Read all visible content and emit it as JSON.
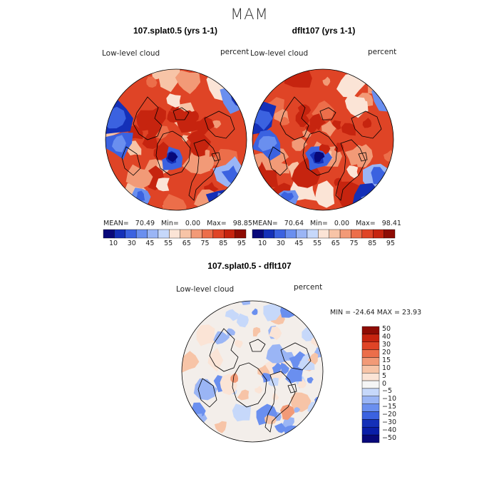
{
  "season": "MAM",
  "panels": [
    {
      "title": "107.splat0.5 (yrs 1-1)",
      "variable": "Low-level cloud",
      "units": "percent",
      "stats": {
        "mean_label": "MEAN=",
        "mean": "70.49",
        "min_label": "Min=",
        "min": "0.00",
        "max_label": "Max=",
        "max": "98.85"
      }
    },
    {
      "title": "dflt107 (yrs 1-1)",
      "variable": "Low-level cloud",
      "units": "percent",
      "stats": {
        "mean_label": "MEAN=",
        "mean": "70.64",
        "min_label": "Min=",
        "min": "0.00",
        "max_label": "Max=",
        "max": "98.41"
      }
    },
    {
      "title": "107.splat0.5 - dflt107",
      "variable": "Low-level cloud",
      "units": "percent",
      "range_text": "MIN = -24.64 MAX =  23.93"
    }
  ],
  "colorbar_abs": {
    "colors": [
      "#08087a",
      "#1430b8",
      "#3b62e0",
      "#6a8fef",
      "#9ab5f5",
      "#c6d8fa",
      "#fbe4d6",
      "#f7c4a7",
      "#f29a77",
      "#ec6e4a",
      "#df4426",
      "#c6240f",
      "#8e0c04"
    ],
    "ticks": [
      "10",
      "30",
      "45",
      "55",
      "65",
      "75",
      "85",
      "95"
    ]
  },
  "colorbar_diff": {
    "colors": [
      "#8e0c04",
      "#c6240f",
      "#df4426",
      "#ec6e4a",
      "#f29a77",
      "#f7c4a7",
      "#fbe4d6",
      "#f5f5f5",
      "#c6d8fa",
      "#9ab5f5",
      "#6a8fef",
      "#3b62e0",
      "#1430b8",
      "#0a1ea8",
      "#08087a"
    ],
    "ticks": [
      "50",
      "40",
      "30",
      "20",
      "15",
      "10",
      "5",
      "0",
      "−5",
      "−10",
      "−15",
      "−20",
      "−30",
      "−40",
      "−50"
    ]
  },
  "map_colors": {
    "abs_base": "#df4426",
    "abs_fill": [
      "#c6240f",
      "#ec6e4a",
      "#f29a77",
      "#f7c4a7",
      "#fbe4d6"
    ],
    "abs_blue": [
      "#1430b8",
      "#3b62e0",
      "#6a8fef",
      "#9ab5f5",
      "#c6d8fa",
      "#08087a"
    ],
    "diff_base": "#f3eeea",
    "diff_fill": [
      "#fbe4d6",
      "#f7c4a7",
      "#c6d8fa",
      "#9ab5f5",
      "#6a8fef",
      "#f29a77"
    ]
  }
}
